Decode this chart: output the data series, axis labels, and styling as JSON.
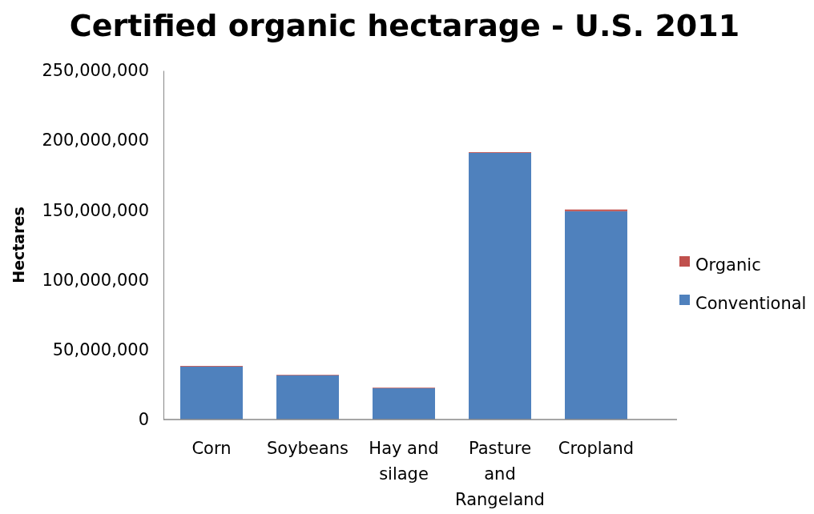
{
  "chart_data": {
    "type": "bar",
    "title": "Certified organic hectarage - U.S. 2011",
    "ylabel": "Hectares",
    "categories": [
      "Corn",
      "Soybeans",
      "Hay and silage",
      "Pasture and Rangeland",
      "Cropland"
    ],
    "stacked": true,
    "legend": "right",
    "grid": false,
    "ylim": [
      0,
      250000000
    ],
    "yticks": [
      {
        "value": 0,
        "label": "0"
      },
      {
        "value": 50000000,
        "label": "50,000,000"
      },
      {
        "value": 100000000,
        "label": "100,000,000"
      },
      {
        "value": 150000000,
        "label": "150,000,000"
      },
      {
        "value": 200000000,
        "label": "200,000,000"
      },
      {
        "value": 250000000,
        "label": "250,000,000"
      }
    ],
    "series": [
      {
        "name": "Conventional",
        "color": "#4f81bd",
        "values": [
          37900000,
          31700000,
          22500000,
          191000000,
          149200000
        ]
      },
      {
        "name": "Organic",
        "color": "#c0504d",
        "values": [
          500000,
          400000,
          400000,
          500000,
          1200000
        ]
      }
    ]
  }
}
